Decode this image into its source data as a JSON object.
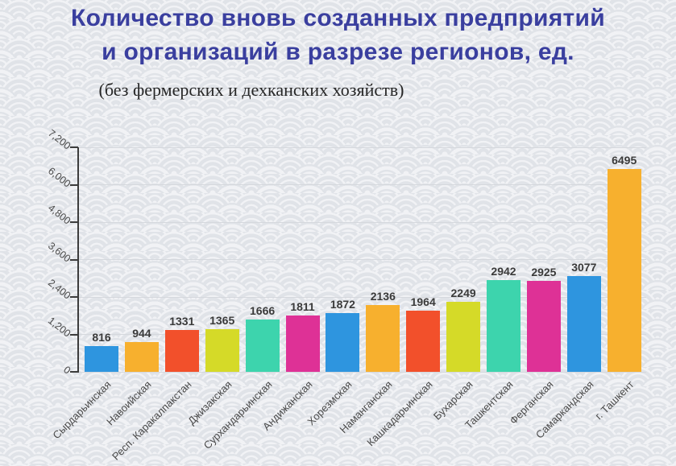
{
  "slide": {
    "title_line1": "Количество вновь созданных предприятий",
    "title_line2": "и организаций в разрезе регионов, ед.",
    "subtitle": "(без фермерских и дехканских хозяйств)"
  },
  "colors": {
    "title_text": "#3a3f9f",
    "subtitle_text": "#262626",
    "value_label": "#3a3a3a",
    "axis_label": "#4a4a4a",
    "axis_line": "#3c3c3c",
    "gridline": "#d5d8dd",
    "background_base": "#f1f2f5",
    "background_pattern": "#e0e3e8"
  },
  "chart_data": {
    "type": "bar",
    "title": "Количество вновь созданных предприятий и организаций в разрезе регионов, ед.",
    "subtitle": "(без фермерских и дехканских хозяйств)",
    "categories": [
      "Сырдарьинская",
      "Навоийская",
      "Респ. Каракалпакстан",
      "Джизакская",
      "Сурхандарьинская",
      "Андижанская",
      "Хорезмская",
      "Наманганская",
      "Кашкадарьинская",
      "Бухарская",
      "Ташкентская",
      "Ферганская",
      "Самаркандская",
      "г. Ташкент"
    ],
    "values": [
      816,
      944,
      1331,
      1365,
      1666,
      1811,
      1872,
      2136,
      1964,
      2249,
      2942,
      2925,
      3077,
      6495
    ],
    "bar_colors": [
      "#2e95df",
      "#f7b02e",
      "#f2502b",
      "#d5da28",
      "#3dd4ad",
      "#de3196",
      "#2e95df",
      "#f7b02e",
      "#f2502b",
      "#d5da28",
      "#3dd4ad",
      "#de3196",
      "#2e95df",
      "#f7b02e"
    ],
    "ylim": [
      0,
      7200
    ],
    "y_tick_values": [
      0,
      1200,
      2400,
      3600,
      4800,
      6000,
      7200
    ],
    "y_tick_labels": [
      "0",
      "1,200",
      "2,400",
      "3,600",
      "4,800",
      "6,000",
      "7,200"
    ],
    "xlabel": "",
    "ylabel": "",
    "grid": true,
    "legend": "none",
    "value_labels": true,
    "x_label_rotation_deg": -45,
    "y_label_rotation_deg": 38
  }
}
